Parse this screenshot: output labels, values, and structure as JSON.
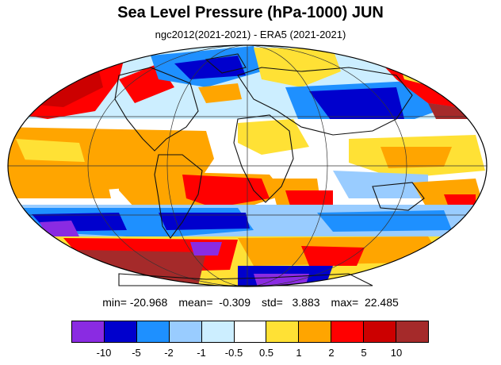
{
  "title": "Sea Level Pressure (hPa-1000) JUN",
  "subtitle": "ngc2012(2021-2021) - ERA5 (2021-2021)",
  "stats": {
    "min": "min= -20.968",
    "mean": "mean=  -0.309",
    "std": "std=   3.883",
    "max": "max=  22.485"
  },
  "colorbar": {
    "colors": [
      "#8a2be2",
      "#0000cd",
      "#1e90ff",
      "#99ccff",
      "#cceeff",
      "#ffffff",
      "#ffe135",
      "#ffa500",
      "#ff0000",
      "#cc0000",
      "#a52a2a"
    ],
    "ticks": [
      "-10",
      "-5",
      "-2",
      "-1",
      "-0.5",
      "0.5",
      "1",
      "2",
      "5",
      "10"
    ]
  },
  "map": {
    "projection": "Mollweide",
    "ocean_fill": "#ffffff"
  }
}
